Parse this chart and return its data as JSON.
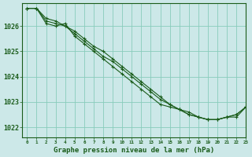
{
  "title": "Graphe pression niveau de la mer (hPa)",
  "bg_color": "#cce8e8",
  "line_color": "#1a5c1a",
  "grid_color": "#88ccbb",
  "text_color": "#1a5c1a",
  "xlim": [
    -0.5,
    23
  ],
  "ylim": [
    1021.6,
    1026.9
  ],
  "yticks": [
    1022,
    1023,
    1024,
    1025,
    1026
  ],
  "xticks": [
    0,
    1,
    2,
    3,
    4,
    5,
    6,
    7,
    8,
    9,
    10,
    11,
    12,
    13,
    14,
    15,
    16,
    17,
    18,
    19,
    20,
    21,
    22,
    23
  ],
  "series": [
    [
      1026.7,
      1026.7,
      1026.3,
      1026.2,
      1026.0,
      1025.8,
      1025.5,
      1025.2,
      1025.0,
      1024.7,
      1024.4,
      1024.1,
      1023.8,
      1023.5,
      1023.2,
      1022.9,
      1022.7,
      1022.6,
      1022.4,
      1022.3,
      1022.3,
      1022.4,
      1022.4,
      1022.8
    ],
    [
      1026.7,
      1026.7,
      1026.1,
      1026.0,
      1026.1,
      1025.6,
      1025.3,
      1025.0,
      1024.7,
      1024.4,
      1024.1,
      1023.8,
      1023.5,
      1023.2,
      1022.9,
      1022.8,
      1022.7,
      1022.5,
      1022.4,
      1022.3,
      1022.3,
      1022.4,
      1022.5,
      1022.8
    ],
    [
      1026.7,
      1026.7,
      1026.2,
      1026.1,
      1026.0,
      1025.7,
      1025.4,
      1025.1,
      1024.8,
      1024.6,
      1024.3,
      1024.0,
      1023.7,
      1023.4,
      1023.1,
      1022.9,
      1022.7,
      1022.5,
      1022.4,
      1022.3,
      1022.3,
      1022.4,
      1022.5,
      1022.8
    ]
  ],
  "marker_x": {
    "s0": [
      0,
      1,
      2,
      3,
      4,
      5,
      6,
      7,
      8,
      9,
      10,
      11,
      12,
      13,
      14,
      15,
      16,
      17,
      18,
      19,
      20,
      21,
      22,
      23
    ],
    "s1": [
      0,
      1,
      2,
      3,
      4,
      5,
      6,
      7,
      8,
      9,
      10,
      11,
      12,
      13,
      14,
      15,
      16,
      17,
      18,
      19,
      20,
      21,
      22,
      23
    ],
    "s2": [
      0,
      1,
      2,
      3,
      4,
      5,
      6,
      7,
      8,
      9,
      10,
      11,
      12,
      13,
      14,
      15,
      16,
      17,
      18,
      19,
      20,
      21,
      22,
      23
    ]
  }
}
